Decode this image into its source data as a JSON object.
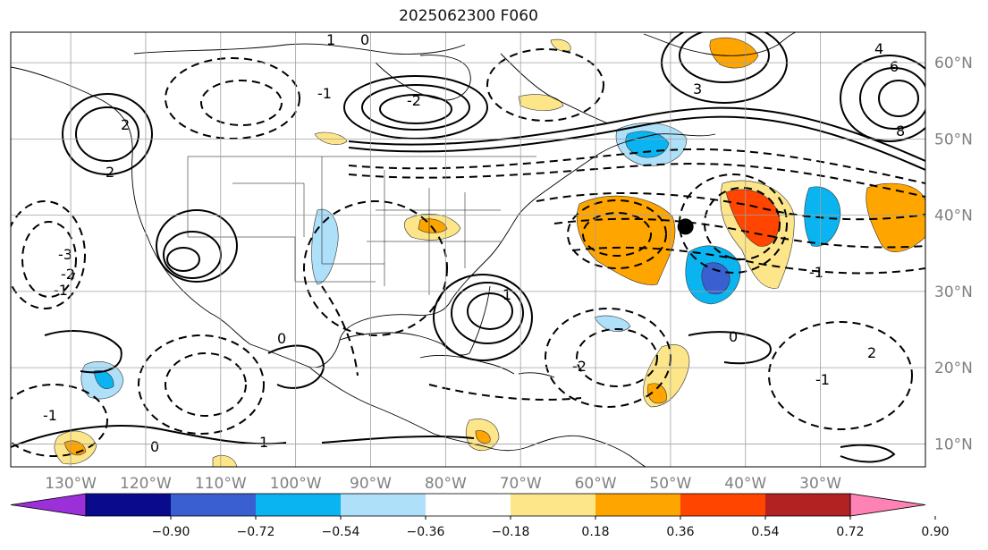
{
  "title": "2025062300 F060",
  "map": {
    "lon_range": [
      -138,
      -16
    ],
    "lat_range": [
      7,
      64
    ],
    "lon_ticks": [
      "130°W",
      "120°W",
      "110°W",
      "100°W",
      "90°W",
      "80°W",
      "70°W",
      "60°W",
      "50°W",
      "40°W",
      "30°W"
    ],
    "lat_ticks": [
      "10°N",
      "20°N",
      "30°N",
      "40°N",
      "50°N",
      "60°N"
    ],
    "marker": {
      "lon": -48,
      "lat": 38.5,
      "color": "#000000"
    }
  },
  "contour_labels": [
    "1",
    "0",
    "-1",
    "-2",
    "2",
    "3",
    "4",
    "6",
    "8",
    "-3",
    "1",
    "-1",
    "0",
    "-2",
    "2",
    "-1",
    "0",
    "1",
    "-1",
    "0",
    "-1",
    "2",
    "-2"
  ],
  "colorbar": {
    "ticks": [
      "−0.90",
      "−0.72",
      "−0.54",
      "−0.36",
      "−0.18",
      "0.18",
      "0.36",
      "0.54",
      "0.72",
      "0.90"
    ],
    "colors": [
      "#9b30d9",
      "#0a0a8c",
      "#3a5fd0",
      "#0ab4f0",
      "#aee0fa",
      "#ffffff",
      "#fde68a",
      "#ffa500",
      "#ff4500",
      "#b22222",
      "#ff82b4"
    ]
  }
}
